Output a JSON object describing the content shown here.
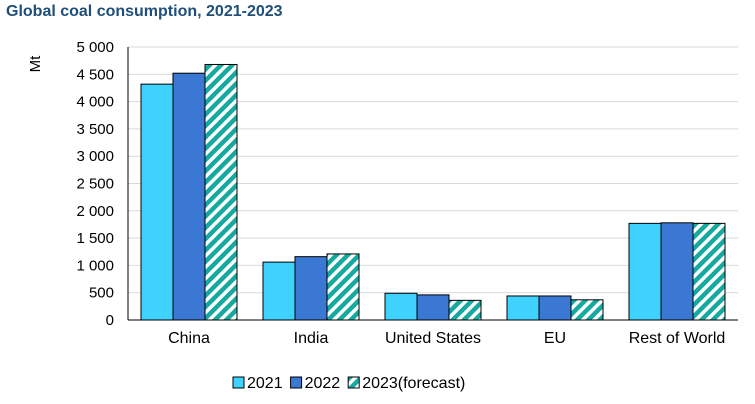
{
  "chart_data": {
    "type": "bar",
    "title": "Global coal consumption, 2021-2023",
    "ylabel": "Mt",
    "xlabel": "",
    "ylim": [
      0,
      5000
    ],
    "yticks": [
      0,
      500,
      1000,
      1500,
      2000,
      2500,
      3000,
      3500,
      4000,
      4500,
      5000
    ],
    "ytick_labels": [
      "0",
      "500",
      "1 000",
      "1 500",
      "2 000",
      "2 500",
      "3 000",
      "3 500",
      "4 000",
      "4 500",
      "5 000"
    ],
    "grid": true,
    "legend_position": "bottom",
    "categories": [
      "China",
      "India",
      "United States",
      "EU",
      "Rest of World"
    ],
    "series": [
      {
        "name": "2021",
        "color": "#3fd2ff",
        "pattern": "solid",
        "values": [
          4320,
          1060,
          490,
          440,
          1770
        ]
      },
      {
        "name": "2022",
        "color": "#3a78d4",
        "pattern": "solid",
        "values": [
          4520,
          1160,
          460,
          440,
          1780
        ]
      },
      {
        "name": "2023(forecast)",
        "color": "#16a9a0",
        "pattern": "diagonal-stripes",
        "values": [
          4680,
          1210,
          360,
          370,
          1770
        ]
      }
    ]
  }
}
